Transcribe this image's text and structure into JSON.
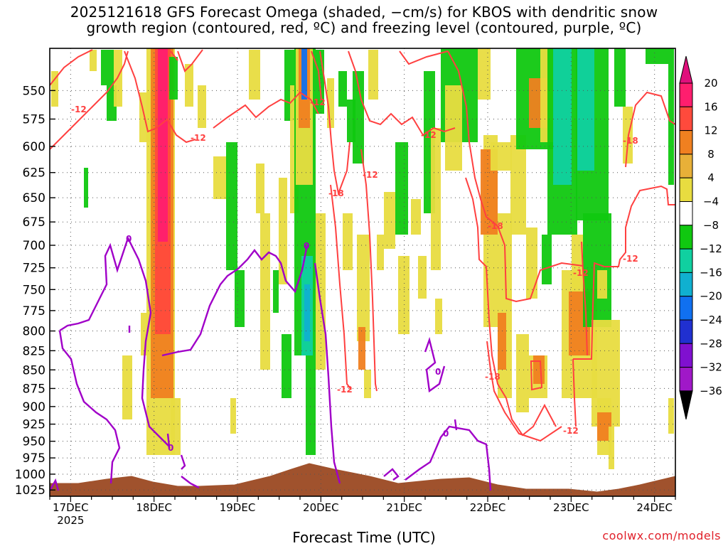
{
  "chart_data": {
    "type": "heatmap",
    "title": "2025121618 GFS Forecast Omega (shaded, −cm/s) for KBOS with dendritic snow growth region (contoured, red, ºC) and freezing level (contoured, purple, ºC)",
    "title_lines": [
      "2025121618 GFS Forecast Omega (shaded, −cm/s) for KBOS with dendritic snow",
      "growth region (contoured, red, ºC) and freezing level (contoured, purple, ºC)"
    ],
    "xlabel": "Forecast Time (UTC)",
    "ylabel": "",
    "x_ticks": [
      {
        "label": "17DEC",
        "day": 17
      },
      {
        "label": "18DEC",
        "day": 18
      },
      {
        "label": "19DEC",
        "day": 19
      },
      {
        "label": "20DEC",
        "day": 20
      },
      {
        "label": "21DEC",
        "day": 21
      },
      {
        "label": "22DEC",
        "day": 22
      },
      {
        "label": "23DEC",
        "day": 23
      },
      {
        "label": "24DEC",
        "day": 24
      }
    ],
    "x_year_label": "2025",
    "xlim_days": [
      16.75,
      24.25
    ],
    "y_ticks": [
      550,
      575,
      600,
      625,
      650,
      675,
      700,
      725,
      750,
      775,
      800,
      825,
      850,
      875,
      900,
      925,
      950,
      975,
      1000,
      1025
    ],
    "ylim_hpa": [
      1035,
      515
    ],
    "y_scale": "log pressure",
    "grid": true,
    "colorbar": {
      "labels": [
        "20",
        "16",
        "12",
        "8",
        "4",
        "−4",
        "−8",
        "−12",
        "−16",
        "−20",
        "−24",
        "−28",
        "−32",
        "−36"
      ],
      "colors": [
        "#ff1e6e",
        "#ff4a3c",
        "#f08020",
        "#e8b038",
        "#e8dc40",
        "#ffffff",
        "#10c810",
        "#10d0a0",
        "#10b0d0",
        "#1070f0",
        "#2030d0",
        "#8010d0",
        "#a018c8",
        "#b0b0b0"
      ],
      "top_arrow_color": "#e0107c",
      "bottom_arrow_color": "#000000"
    },
    "contour_labels_red": [
      "-12",
      "-12",
      "-12",
      "-12",
      "-12",
      "-18",
      "-18",
      "-12",
      "-18",
      "-18",
      "-12",
      "-12",
      "-12"
    ],
    "contour_labels_purple": [
      "0",
      "0",
      "0",
      "0",
      "0"
    ],
    "colors": {
      "red_contour": "#ff4040",
      "purple_contour": "#a000c8",
      "terrain": "#a0522d"
    },
    "credit": "coolwx.com/models"
  }
}
